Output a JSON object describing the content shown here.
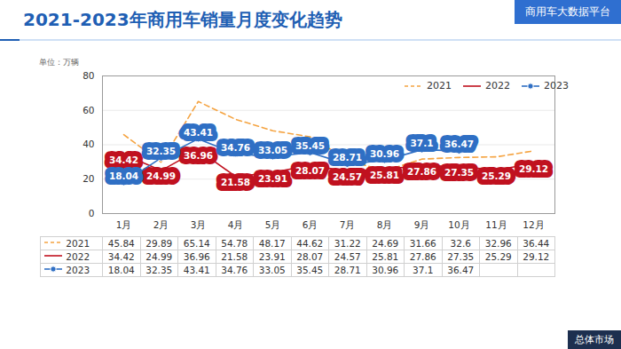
{
  "chart_data": {
    "type": "line",
    "title": "2021-2023年商用车销量月度变化趋势",
    "y_label": "单位：万辆",
    "annotations": [
      "商用车大数据平台",
      "总体市场"
    ],
    "categories": [
      "1月",
      "2月",
      "3月",
      "4月",
      "5月",
      "6月",
      "7月",
      "8月",
      "9月",
      "10月",
      "11月",
      "12月"
    ],
    "series": [
      {
        "name": "2021",
        "color": "#f5a442",
        "line_style": "dashed",
        "data_labels": false,
        "values": [
          45.84,
          29.89,
          65.14,
          54.78,
          48.17,
          44.62,
          31.22,
          24.69,
          31.66,
          32.6,
          32.96,
          36.44
        ]
      },
      {
        "name": "2022",
        "color": "#c0111f",
        "line_style": "solid",
        "data_labels": true,
        "values": [
          34.42,
          24.99,
          36.96,
          21.58,
          23.91,
          28.07,
          24.57,
          25.81,
          27.86,
          27.35,
          25.29,
          29.12
        ]
      },
      {
        "name": "2023",
        "color": "#2f6fc4",
        "line_style": "solid",
        "marker": "circle",
        "data_labels": true,
        "values": [
          18.04,
          32.35,
          43.41,
          34.76,
          33.05,
          35.45,
          28.71,
          30.96,
          37.1,
          36.47,
          null,
          null
        ]
      }
    ],
    "ylim": [
      0,
      80
    ],
    "yticks": [
      0,
      20,
      40,
      60,
      80
    ],
    "grid": true,
    "legend": "upper right"
  }
}
